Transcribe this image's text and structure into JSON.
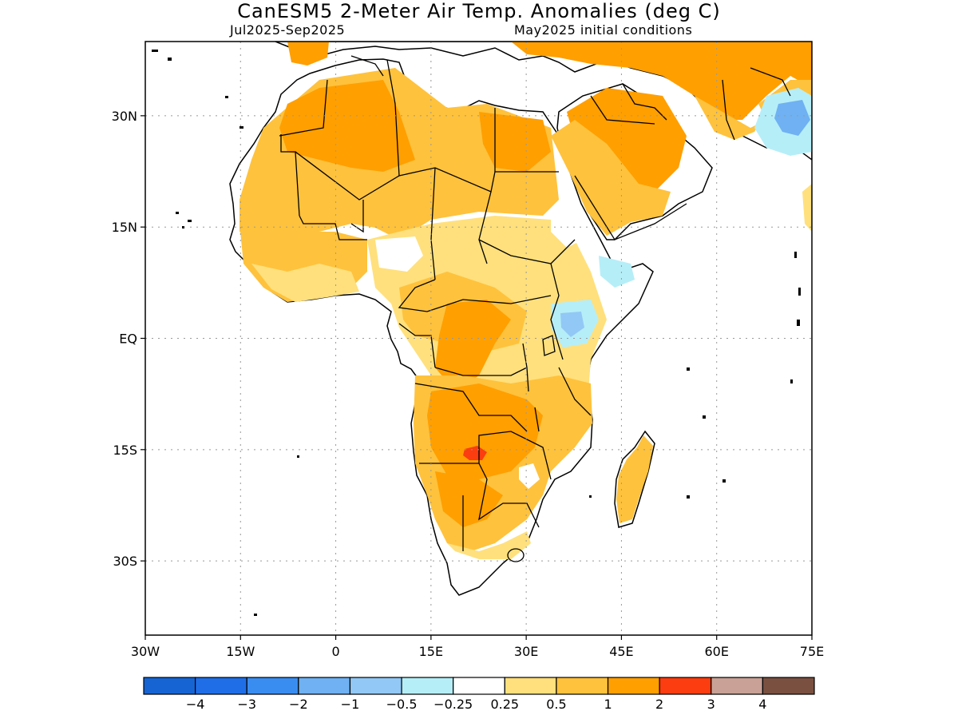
{
  "title": "CanESM5 2-Meter Air Temp. Anomalies (deg C)",
  "subtitle_left": "Jul2025-Sep2025",
  "subtitle_right": "May2025 initial conditions",
  "lon_labels": [
    "30W",
    "15W",
    "0",
    "15E",
    "30E",
    "45E",
    "60E",
    "75E"
  ],
  "lat_labels": [
    "30N",
    "15N",
    "EQ",
    "15S",
    "30S"
  ],
  "colors": {
    "land_ocean": "#ffffff",
    "coast": "#000000",
    "grid": "#888888"
  },
  "colorbar": {
    "colors": [
      "#1664d4",
      "#1f6ee8",
      "#3a8df0",
      "#6fb1f2",
      "#92c8f5",
      "#b6eef8",
      "#ffffff",
      "#ffe07c",
      "#ffc23c",
      "#ff9f00",
      "#fb3d0f",
      "#c9a196",
      "#7a5040"
    ],
    "labels": [
      "-4",
      "-3",
      "-2",
      "-1",
      "-0.5",
      "-0.25",
      "0.25",
      "0.5",
      "1",
      "2",
      "3",
      "4"
    ]
  },
  "map": {
    "lon_range": [
      -30,
      75
    ],
    "lat_range": [
      -40,
      40
    ]
  }
}
